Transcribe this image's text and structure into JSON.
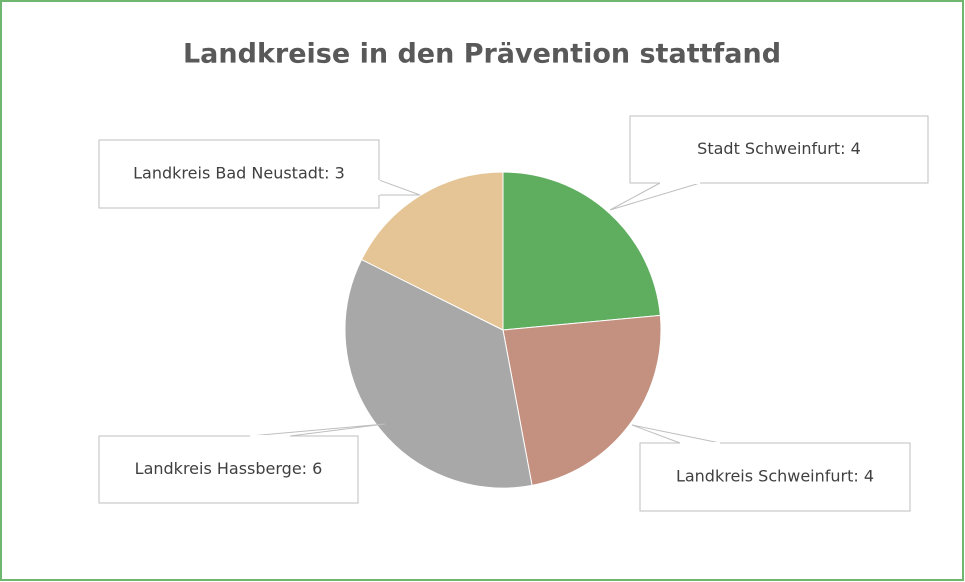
{
  "chart_data": {
    "type": "pie",
    "title": "Landkreise in den Prävention stattfand",
    "categories": [
      "Stadt Schweinfurt",
      "Landkreis Schweinfurt",
      "Landkreis Hassberge",
      "Landkreis Bad Neustadt"
    ],
    "values": [
      4,
      4,
      6,
      3
    ],
    "value_labels": [
      "Stadt Schweinfurt: 4",
      "Landkreis Schweinfurt: 4",
      "Landkreis Hassberge: 6",
      "Landkreis Bad Neustadt: 3"
    ],
    "colors": [
      "#5fad5f",
      "#c4907f",
      "#a8a8a8",
      "#e5c596"
    ]
  }
}
